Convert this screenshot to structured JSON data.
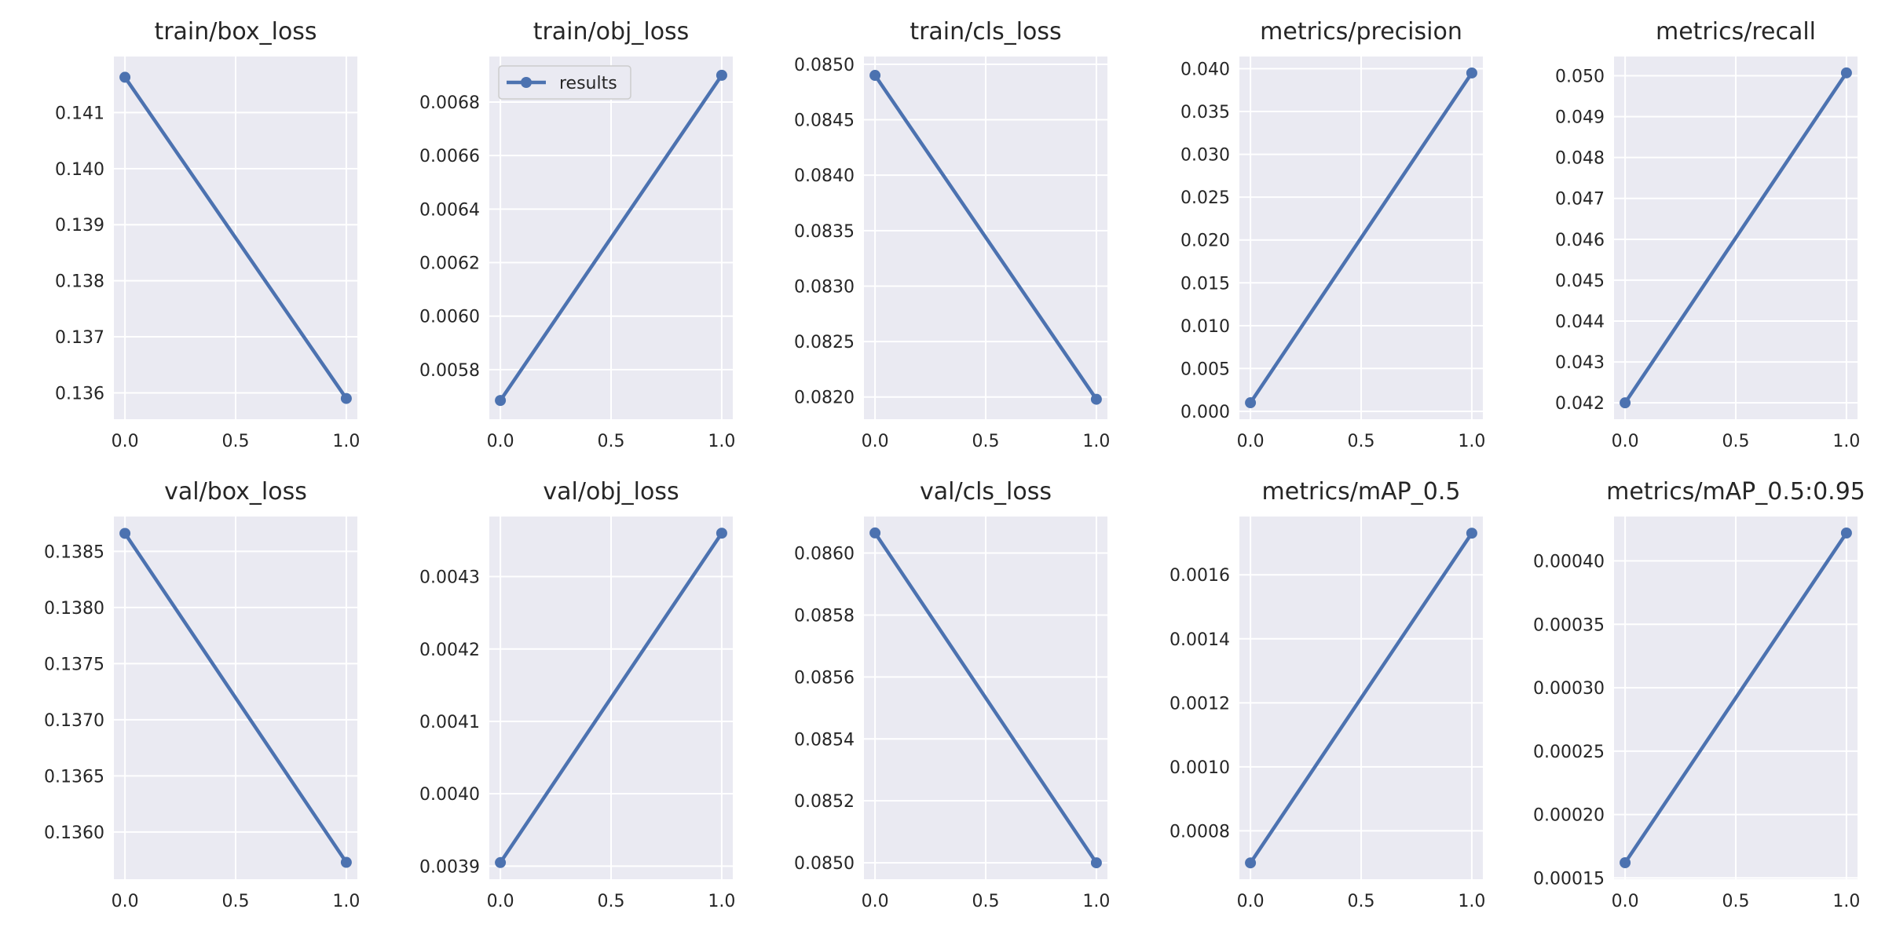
{
  "chart_data": [
    {
      "type": "line",
      "title": "train/box_loss",
      "x": [
        0.0,
        1.0
      ],
      "series": [
        {
          "name": "results",
          "values": [
            0.14163,
            0.1359
          ]
        }
      ],
      "xlim": [
        -0.05,
        1.05
      ],
      "ylim": [
        0.13553,
        0.142
      ],
      "xticks": [
        "0.0",
        "0.5",
        "1.0"
      ],
      "yticks": [
        "0.136",
        "0.137",
        "0.138",
        "0.139",
        "0.140",
        "0.141"
      ],
      "grid": true,
      "legend": null
    },
    {
      "type": "line",
      "title": "train/obj_loss",
      "x": [
        0.0,
        1.0
      ],
      "series": [
        {
          "name": "results",
          "values": [
            0.005685,
            0.0069
          ]
        }
      ],
      "xlim": [
        -0.05,
        1.05
      ],
      "ylim": [
        0.005615,
        0.00697
      ],
      "xticks": [
        "0.0",
        "0.5",
        "1.0"
      ],
      "yticks": [
        "0.0058",
        "0.0060",
        "0.0062",
        "0.0064",
        "0.0066",
        "0.0068"
      ],
      "grid": true,
      "legend": "upper left"
    },
    {
      "type": "line",
      "title": "train/cls_loss",
      "x": [
        0.0,
        1.0
      ],
      "series": [
        {
          "name": "results",
          "values": [
            0.0849,
            0.08198
          ]
        }
      ],
      "xlim": [
        -0.05,
        1.05
      ],
      "ylim": [
        0.0818,
        0.08507
      ],
      "xticks": [
        "0.0",
        "0.5",
        "1.0"
      ],
      "yticks": [
        "0.0820",
        "0.0825",
        "0.0830",
        "0.0835",
        "0.0840",
        "0.0845",
        "0.0850"
      ],
      "grid": true,
      "legend": null
    },
    {
      "type": "line",
      "title": "metrics/precision",
      "x": [
        0.0,
        1.0
      ],
      "series": [
        {
          "name": "results",
          "values": [
            0.001,
            0.0395
          ]
        }
      ],
      "xlim": [
        -0.05,
        1.05
      ],
      "ylim": [
        -0.00092,
        0.04142
      ],
      "xticks": [
        "0.0",
        "0.5",
        "1.0"
      ],
      "yticks": [
        "0.000",
        "0.005",
        "0.010",
        "0.015",
        "0.020",
        "0.025",
        "0.030",
        "0.035",
        "0.040"
      ],
      "grid": true,
      "legend": null
    },
    {
      "type": "line",
      "title": "metrics/recall",
      "x": [
        0.0,
        1.0
      ],
      "series": [
        {
          "name": "results",
          "values": [
            0.042,
            0.05007
          ]
        }
      ],
      "xlim": [
        -0.05,
        1.05
      ],
      "ylim": [
        0.0416,
        0.05047
      ],
      "xticks": [
        "0.0",
        "0.5",
        "1.0"
      ],
      "yticks": [
        "0.042",
        "0.043",
        "0.044",
        "0.045",
        "0.046",
        "0.047",
        "0.048",
        "0.049",
        "0.050"
      ],
      "grid": true,
      "legend": null
    },
    {
      "type": "line",
      "title": "val/box_loss",
      "x": [
        0.0,
        1.0
      ],
      "series": [
        {
          "name": "results",
          "values": [
            0.13866,
            0.13573
          ]
        }
      ],
      "xlim": [
        -0.05,
        1.05
      ],
      "ylim": [
        0.13558,
        0.13881
      ],
      "xticks": [
        "0.0",
        "0.5",
        "1.0"
      ],
      "yticks": [
        "0.1360",
        "0.1365",
        "0.1370",
        "0.1375",
        "0.1380",
        "0.1385"
      ],
      "grid": true,
      "legend": null
    },
    {
      "type": "line",
      "title": "val/obj_loss",
      "x": [
        0.0,
        1.0
      ],
      "series": [
        {
          "name": "results",
          "values": [
            0.003905,
            0.00436
          ]
        }
      ],
      "xlim": [
        -0.05,
        1.05
      ],
      "ylim": [
        0.003882,
        0.004383
      ],
      "xticks": [
        "0.0",
        "0.5",
        "1.0"
      ],
      "yticks": [
        "0.0039",
        "0.0040",
        "0.0041",
        "0.0042",
        "0.0043"
      ],
      "grid": true,
      "legend": null
    },
    {
      "type": "line",
      "title": "val/cls_loss",
      "x": [
        0.0,
        1.0
      ],
      "series": [
        {
          "name": "results",
          "values": [
            0.086065,
            0.085
          ]
        }
      ],
      "xlim": [
        -0.05,
        1.05
      ],
      "ylim": [
        0.084947,
        0.086118
      ],
      "xticks": [
        "0.0",
        "0.5",
        "1.0"
      ],
      "yticks": [
        "0.0850",
        "0.0852",
        "0.0854",
        "0.0856",
        "0.0858",
        "0.0860"
      ],
      "grid": true,
      "legend": null
    },
    {
      "type": "line",
      "title": "metrics/mAP_0.5",
      "x": [
        0.0,
        1.0
      ],
      "series": [
        {
          "name": "results",
          "values": [
            0.0007,
            0.00173
          ]
        }
      ],
      "xlim": [
        -0.05,
        1.05
      ],
      "ylim": [
        0.000649,
        0.001782
      ],
      "xticks": [
        "0.0",
        "0.5",
        "1.0"
      ],
      "yticks": [
        "0.0008",
        "0.0010",
        "0.0012",
        "0.0014",
        "0.0016"
      ],
      "grid": true,
      "legend": null
    },
    {
      "type": "line",
      "title": "metrics/mAP_0.5:0.95",
      "x": [
        0.0,
        1.0
      ],
      "series": [
        {
          "name": "results",
          "values": [
            0.000162,
            0.000422
          ]
        }
      ],
      "xlim": [
        -0.05,
        1.05
      ],
      "ylim": [
        0.000149,
        0.000435
      ],
      "xticks": [
        "0.0",
        "0.5",
        "1.0"
      ],
      "yticks": [
        "0.00015",
        "0.00020",
        "0.00025",
        "0.00030",
        "0.00035",
        "0.00040"
      ],
      "grid": true,
      "legend": null
    }
  ],
  "style": {
    "axes_bg": "#EAEAF2",
    "grid_color": "#FFFFFF",
    "line_color": "#4C72B0",
    "text_color": "#262626"
  }
}
